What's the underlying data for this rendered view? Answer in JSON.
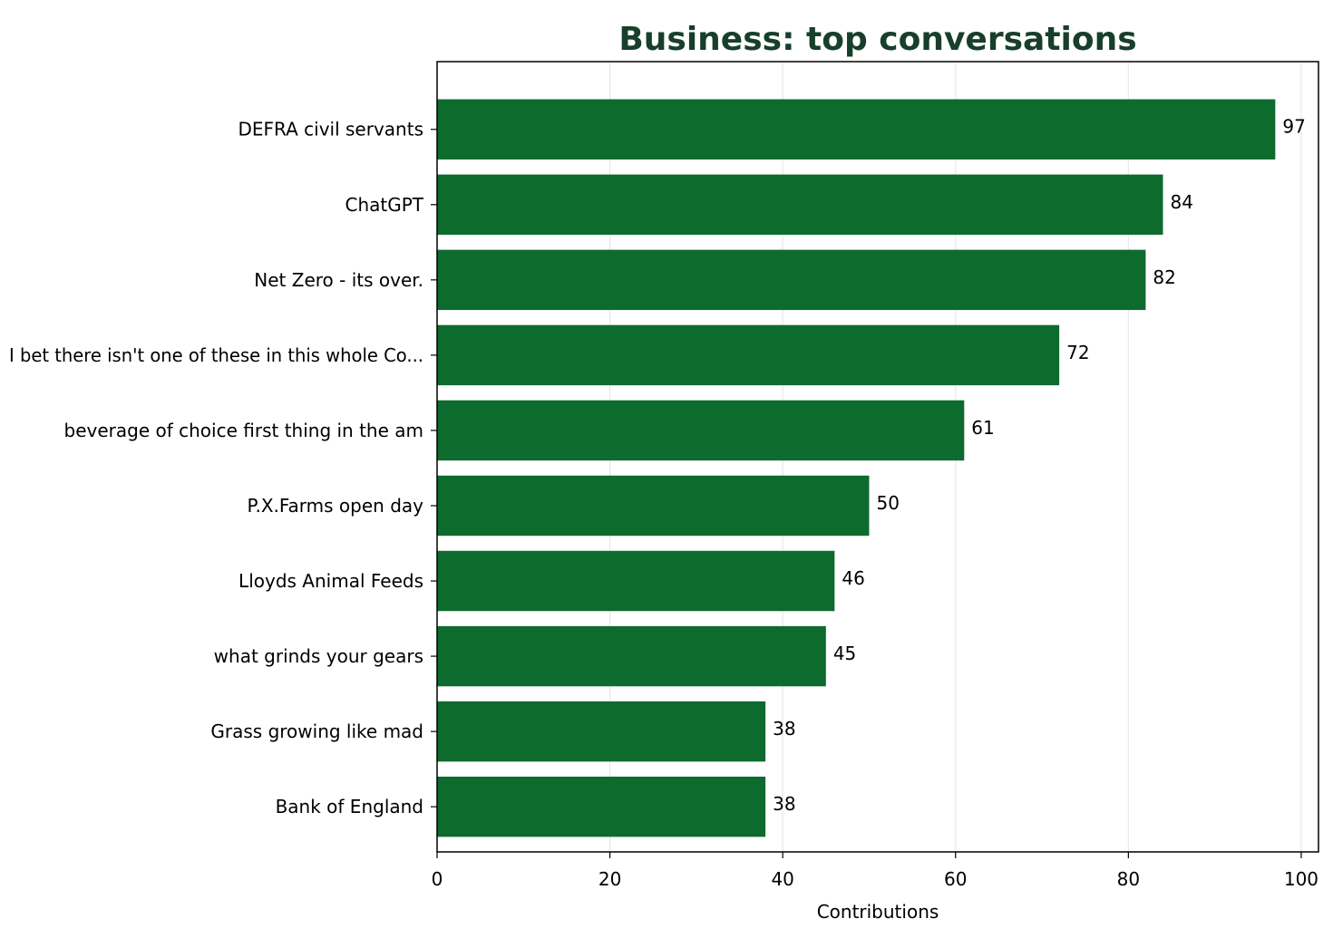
{
  "chart_data": {
    "type": "bar",
    "orientation": "horizontal",
    "title": "Business: top conversations",
    "xlabel": "Contributions",
    "ylabel": "",
    "xlim": [
      0,
      102
    ],
    "xticks": [
      0,
      20,
      40,
      60,
      80,
      100
    ],
    "grid": "vertical",
    "legend": "none",
    "categories": [
      "DEFRA civil servants",
      "ChatGPT",
      "Net Zero - its over.",
      "I bet there isn't one of these in this whole Co...",
      "beverage of choice first thing in the am",
      "P.X.Farms open day",
      "Lloyds Animal Feeds",
      "what grinds your gears",
      "Grass growing like mad",
      "Bank of England"
    ],
    "values": [
      97,
      84,
      82,
      72,
      61,
      50,
      46,
      45,
      38,
      38
    ],
    "colors": {
      "bar": "#0d6b2e",
      "title": "#173f2b",
      "grid": "#e8e8e8",
      "axis": "#000000"
    }
  }
}
